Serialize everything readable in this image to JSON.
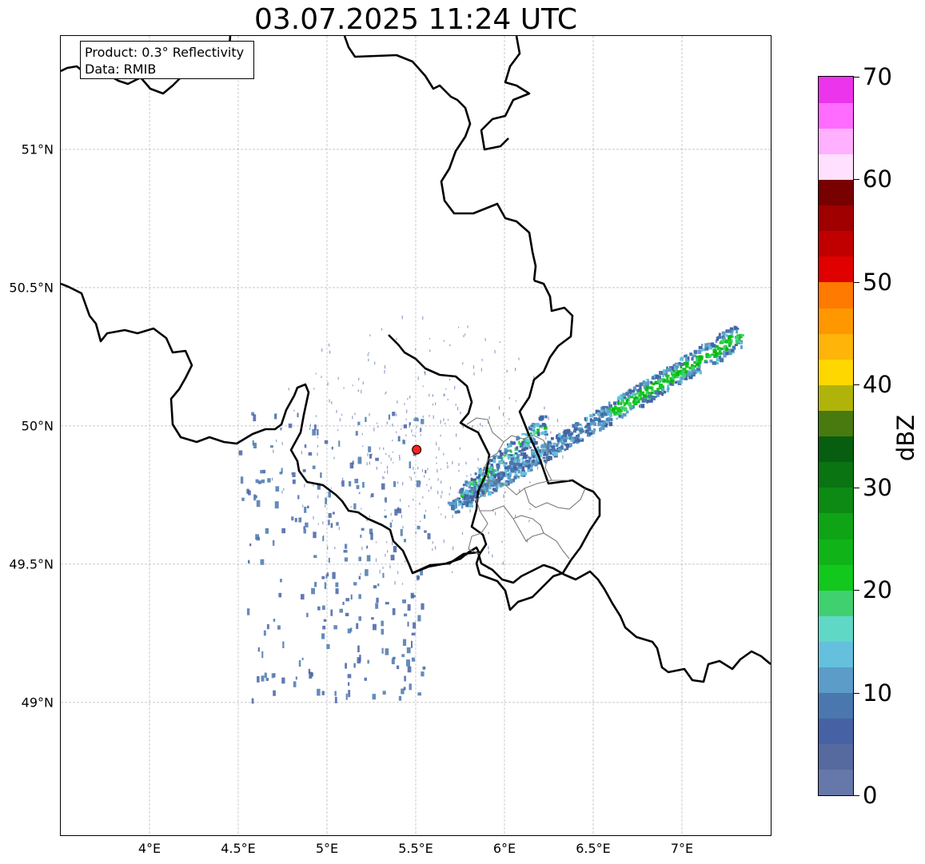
{
  "title": "03.07.2025 11:24 UTC",
  "info_box": {
    "line1": "Product: 0.3° Reflectivity",
    "line2": "Data: RMIB"
  },
  "map": {
    "lat_ticks": [
      "51°N",
      "50.5°N",
      "50°N",
      "49.5°N",
      "49°N"
    ],
    "lon_ticks": [
      "4°E",
      "4.5°E",
      "5°E",
      "5.5°E",
      "6°E",
      "6.5°E",
      "7°E"
    ],
    "extent": {
      "lon_min": 3.5,
      "lon_max": 7.5,
      "lat_min": 48.52,
      "lat_max": 51.41
    },
    "radar_site": {
      "lon": 5.505,
      "lat": 49.914,
      "color": "#ff2020"
    },
    "gridlines": true
  },
  "colorbar": {
    "unit": "dBZ",
    "min": 0,
    "max": 70,
    "step": 2.5,
    "tick_labels": [
      "0",
      "10",
      "20",
      "30",
      "40",
      "50",
      "60",
      "70"
    ],
    "colors": [
      "#6677aa",
      "#566aa0",
      "#4662a4",
      "#4a78ae",
      "#5c9cc8",
      "#64c0dc",
      "#60d8c6",
      "#40d070",
      "#12c81c",
      "#10b418",
      "#0fa416",
      "#0d8a14",
      "#0a7412",
      "#085e10",
      "#487a10",
      "#b0b40a",
      "#ffd700",
      "#ffb40a",
      "#ff9800",
      "#ff7a00",
      "#e00000",
      "#c00000",
      "#a00000",
      "#780000",
      "#ffe0ff",
      "#ffb0ff",
      "#ff6cff",
      "#ec34ec"
    ]
  }
}
